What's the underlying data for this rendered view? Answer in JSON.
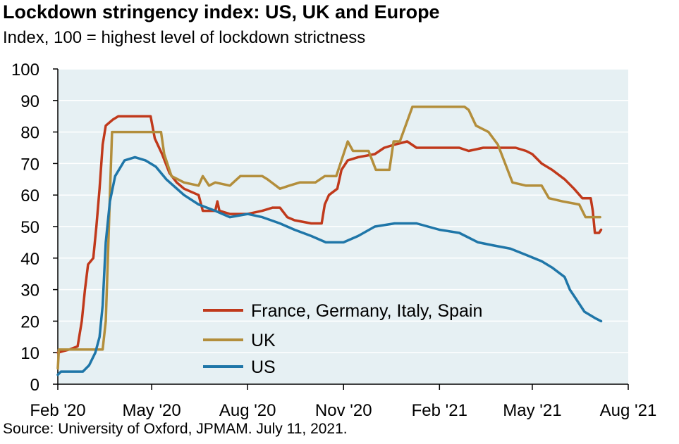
{
  "chart_data": {
    "type": "line",
    "title": "Lockdown stringency index: US, UK and Europe",
    "subtitle": "Index, 100 = highest level of lockdown strictness",
    "source": "Source: University of Oxford, JPMAM. July 11, 2021.",
    "ylim": [
      0,
      100
    ],
    "yticks": [
      0,
      10,
      20,
      30,
      40,
      50,
      60,
      70,
      80,
      90,
      100
    ],
    "xlim": [
      "2020-02-01",
      "2021-08-01"
    ],
    "xticks": [
      {
        "date": "2020-02-01",
        "label": "Feb '20"
      },
      {
        "date": "2020-05-01",
        "label": "May '20"
      },
      {
        "date": "2020-08-01",
        "label": "Aug '20"
      },
      {
        "date": "2020-11-01",
        "label": "Nov '20"
      },
      {
        "date": "2021-02-01",
        "label": "Feb '21"
      },
      {
        "date": "2021-05-01",
        "label": "May '21"
      },
      {
        "date": "2021-08-01",
        "label": "Aug '21"
      }
    ],
    "grid": "horizontal",
    "legend_position": "bottom-center",
    "background_color": "#e6f0f3",
    "series": [
      {
        "name": "France, Germany, Italy, Spain",
        "color": "#c0391b",
        "points": [
          [
            "2020-02-01",
            10
          ],
          [
            "2020-02-12",
            11
          ],
          [
            "2020-02-20",
            12
          ],
          [
            "2020-02-24",
            20
          ],
          [
            "2020-02-27",
            30
          ],
          [
            "2020-03-01",
            38
          ],
          [
            "2020-03-06",
            40
          ],
          [
            "2020-03-09",
            50
          ],
          [
            "2020-03-12",
            62
          ],
          [
            "2020-03-15",
            76
          ],
          [
            "2020-03-18",
            82
          ],
          [
            "2020-03-25",
            84
          ],
          [
            "2020-03-30",
            85
          ],
          [
            "2020-04-30",
            85
          ],
          [
            "2020-05-04",
            78
          ],
          [
            "2020-05-11",
            73
          ],
          [
            "2020-05-18",
            67
          ],
          [
            "2020-05-25",
            64
          ],
          [
            "2020-06-01",
            62
          ],
          [
            "2020-06-08",
            61
          ],
          [
            "2020-06-15",
            60
          ],
          [
            "2020-06-19",
            55
          ],
          [
            "2020-07-01",
            55
          ],
          [
            "2020-07-03",
            58
          ],
          [
            "2020-07-05",
            55
          ],
          [
            "2020-07-15",
            54
          ],
          [
            "2020-08-01",
            54
          ],
          [
            "2020-08-15",
            55
          ],
          [
            "2020-08-25",
            56
          ],
          [
            "2020-09-01",
            56
          ],
          [
            "2020-09-08",
            53
          ],
          [
            "2020-09-15",
            52
          ],
          [
            "2020-10-01",
            51
          ],
          [
            "2020-10-11",
            51
          ],
          [
            "2020-10-14",
            57
          ],
          [
            "2020-10-18",
            60
          ],
          [
            "2020-10-26",
            62
          ],
          [
            "2020-10-30",
            68
          ],
          [
            "2020-11-05",
            71
          ],
          [
            "2020-11-15",
            72
          ],
          [
            "2020-12-01",
            73
          ],
          [
            "2020-12-10",
            75
          ],
          [
            "2020-12-20",
            76
          ],
          [
            "2021-01-01",
            77
          ],
          [
            "2021-01-10",
            75
          ],
          [
            "2021-02-01",
            75
          ],
          [
            "2021-02-20",
            75
          ],
          [
            "2021-03-01",
            74
          ],
          [
            "2021-03-15",
            75
          ],
          [
            "2021-04-01",
            75
          ],
          [
            "2021-04-15",
            75
          ],
          [
            "2021-04-25",
            74
          ],
          [
            "2021-05-01",
            73
          ],
          [
            "2021-05-10",
            70
          ],
          [
            "2021-05-20",
            68
          ],
          [
            "2021-06-01",
            65
          ],
          [
            "2021-06-10",
            62
          ],
          [
            "2021-06-18",
            59
          ],
          [
            "2021-06-26",
            59
          ],
          [
            "2021-06-28",
            55
          ],
          [
            "2021-06-30",
            48
          ],
          [
            "2021-07-04",
            48
          ],
          [
            "2021-07-06",
            49
          ]
        ]
      },
      {
        "name": "UK",
        "color": "#b38e3b",
        "points": [
          [
            "2020-02-01",
            5
          ],
          [
            "2020-02-02",
            11
          ],
          [
            "2020-03-15",
            11
          ],
          [
            "2020-03-18",
            20
          ],
          [
            "2020-03-20",
            40
          ],
          [
            "2020-03-22",
            60
          ],
          [
            "2020-03-24",
            80
          ],
          [
            "2020-05-10",
            80
          ],
          [
            "2020-05-13",
            73
          ],
          [
            "2020-05-20",
            66
          ],
          [
            "2020-06-01",
            64
          ],
          [
            "2020-06-15",
            63
          ],
          [
            "2020-06-19",
            66
          ],
          [
            "2020-06-25",
            63
          ],
          [
            "2020-07-01",
            64
          ],
          [
            "2020-07-15",
            63
          ],
          [
            "2020-07-25",
            66
          ],
          [
            "2020-08-15",
            66
          ],
          [
            "2020-08-20",
            65
          ],
          [
            "2020-09-01",
            62
          ],
          [
            "2020-09-10",
            63
          ],
          [
            "2020-09-20",
            64
          ],
          [
            "2020-10-05",
            64
          ],
          [
            "2020-10-14",
            66
          ],
          [
            "2020-10-25",
            66
          ],
          [
            "2020-11-05",
            77
          ],
          [
            "2020-11-10",
            74
          ],
          [
            "2020-11-25",
            74
          ],
          [
            "2020-12-02",
            68
          ],
          [
            "2020-12-15",
            68
          ],
          [
            "2020-12-19",
            77
          ],
          [
            "2020-12-25",
            77
          ],
          [
            "2021-01-06",
            88
          ],
          [
            "2021-02-25",
            88
          ],
          [
            "2021-03-01",
            87
          ],
          [
            "2021-03-08",
            82
          ],
          [
            "2021-03-20",
            80
          ],
          [
            "2021-03-29",
            76
          ],
          [
            "2021-04-12",
            64
          ],
          [
            "2021-04-25",
            63
          ],
          [
            "2021-05-10",
            63
          ],
          [
            "2021-05-17",
            59
          ],
          [
            "2021-05-30",
            58
          ],
          [
            "2021-06-15",
            57
          ],
          [
            "2021-06-21",
            53
          ],
          [
            "2021-07-05",
            53
          ]
        ]
      },
      {
        "name": "US",
        "color": "#1f76a8",
        "points": [
          [
            "2020-02-01",
            3
          ],
          [
            "2020-02-04",
            4
          ],
          [
            "2020-02-25",
            4
          ],
          [
            "2020-03-02",
            6
          ],
          [
            "2020-03-08",
            10
          ],
          [
            "2020-03-12",
            15
          ],
          [
            "2020-03-15",
            25
          ],
          [
            "2020-03-18",
            45
          ],
          [
            "2020-03-22",
            58
          ],
          [
            "2020-03-27",
            66
          ],
          [
            "2020-04-05",
            71
          ],
          [
            "2020-04-15",
            72
          ],
          [
            "2020-04-25",
            71
          ],
          [
            "2020-05-05",
            69
          ],
          [
            "2020-05-15",
            65
          ],
          [
            "2020-06-01",
            60
          ],
          [
            "2020-06-15",
            57
          ],
          [
            "2020-07-01",
            55
          ],
          [
            "2020-07-15",
            53
          ],
          [
            "2020-08-01",
            54
          ],
          [
            "2020-08-15",
            53
          ],
          [
            "2020-09-01",
            51
          ],
          [
            "2020-09-15",
            49
          ],
          [
            "2020-10-01",
            47
          ],
          [
            "2020-10-15",
            45
          ],
          [
            "2020-11-01",
            45
          ],
          [
            "2020-11-15",
            47
          ],
          [
            "2020-12-01",
            50
          ],
          [
            "2020-12-20",
            51
          ],
          [
            "2021-01-10",
            51
          ],
          [
            "2021-02-01",
            49
          ],
          [
            "2021-02-20",
            48
          ],
          [
            "2021-03-10",
            45
          ],
          [
            "2021-03-25",
            44
          ],
          [
            "2021-04-10",
            43
          ],
          [
            "2021-04-25",
            41
          ],
          [
            "2021-05-10",
            39
          ],
          [
            "2021-05-20",
            37
          ],
          [
            "2021-06-01",
            34
          ],
          [
            "2021-06-06",
            30
          ],
          [
            "2021-06-12",
            27
          ],
          [
            "2021-06-20",
            23
          ],
          [
            "2021-06-30",
            21
          ],
          [
            "2021-07-06",
            20
          ]
        ]
      }
    ]
  }
}
